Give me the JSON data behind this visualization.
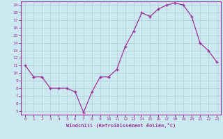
{
  "x": [
    0,
    1,
    2,
    3,
    4,
    5,
    6,
    7,
    8,
    9,
    10,
    11,
    12,
    13,
    14,
    15,
    16,
    17,
    18,
    19,
    20,
    21,
    22,
    23
  ],
  "y": [
    11,
    9.5,
    9.5,
    8,
    8,
    8,
    7.5,
    4.8,
    7.5,
    9.5,
    9.5,
    10.5,
    13.5,
    15.5,
    18,
    17.5,
    18.5,
    19,
    19.3,
    19,
    17.5,
    14,
    13,
    11.5
  ],
  "line_color": "#993399",
  "marker_color": "#993399",
  "bg_color": "#cce8f0",
  "grid_color": "#b0ccd8",
  "xlabel": "Windchill (Refroidissement éolien,°C)",
  "xlim": [
    -0.5,
    23.5
  ],
  "ylim": [
    4.5,
    19.5
  ],
  "yticks": [
    5,
    6,
    7,
    8,
    9,
    10,
    11,
    12,
    13,
    14,
    15,
    16,
    17,
    18,
    19
  ],
  "xticks": [
    0,
    1,
    2,
    3,
    4,
    5,
    6,
    7,
    8,
    9,
    10,
    11,
    12,
    13,
    14,
    15,
    16,
    17,
    18,
    19,
    20,
    21,
    22,
    23
  ],
  "tick_color": "#993399",
  "label_color": "#993399",
  "axis_color": "#993399"
}
